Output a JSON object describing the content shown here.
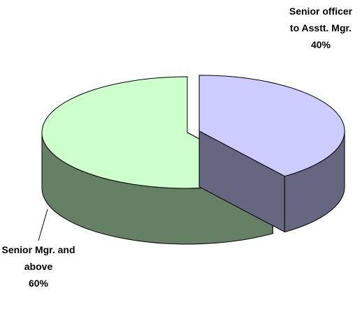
{
  "chart_data": {
    "type": "pie3d",
    "categories": [
      "Senior officer to Asstt. Mgr.",
      "Senior Mgr. and above"
    ],
    "values": [
      40,
      60
    ],
    "value_labels": [
      "40%",
      "60%"
    ],
    "colors": [
      "#ccccff",
      "#ccffcc"
    ]
  }
}
